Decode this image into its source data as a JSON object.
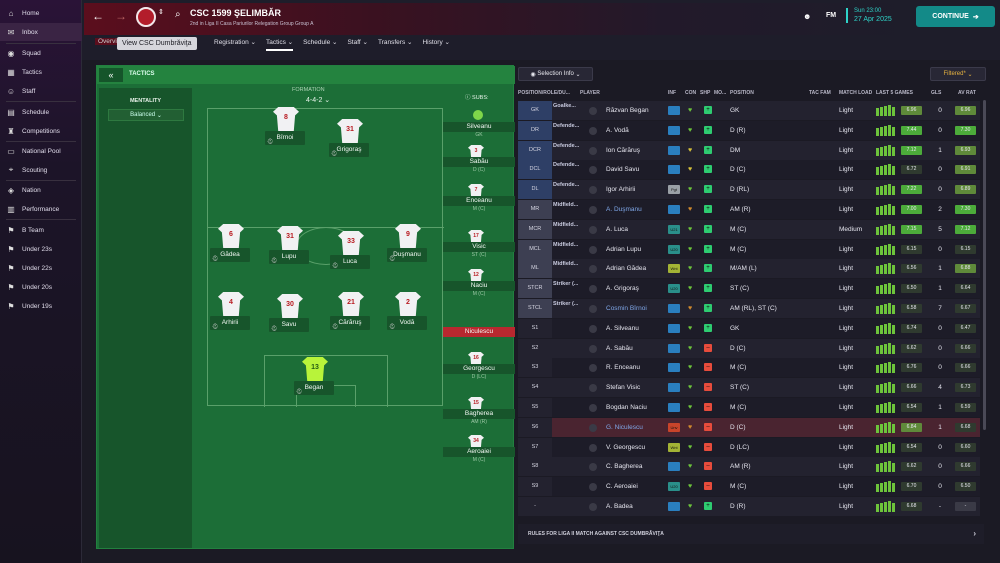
{
  "sidebar": {
    "items": [
      {
        "label": "Home",
        "icon": "home-icon"
      },
      {
        "label": "Inbox",
        "icon": "inbox-icon"
      },
      {
        "label": "Squad",
        "icon": "squad-icon"
      },
      {
        "label": "Tactics",
        "icon": "tactics-icon"
      },
      {
        "label": "Staff",
        "icon": "staff-icon"
      },
      {
        "label": "Schedule",
        "icon": "schedule-icon"
      },
      {
        "label": "Competitions",
        "icon": "trophy-icon"
      },
      {
        "label": "National Pool",
        "icon": "national-pool-icon"
      },
      {
        "label": "Scouting",
        "icon": "scouting-icon"
      },
      {
        "label": "Nation",
        "icon": "nation-icon"
      },
      {
        "label": "Performance",
        "icon": "performance-icon"
      },
      {
        "label": "B Team",
        "icon": "team-icon"
      },
      {
        "label": "Under 23s",
        "icon": "team-icon"
      },
      {
        "label": "Under 22s",
        "icon": "team-icon"
      },
      {
        "label": "Under 20s",
        "icon": "team-icon"
      },
      {
        "label": "Under 19s",
        "icon": "team-icon"
      }
    ]
  },
  "header": {
    "club_name": "CSC 1599 ŞELIMBĂR",
    "club_sub": "2nd in Liga II Casa Pariurilor Relegation Group Group A",
    "tooltip": "View CSC Dumbrăviţa",
    "overview_tab": "Overvi",
    "tabs": [
      "Registration",
      "Tactics",
      "Schedule",
      "Staff",
      "Transfers",
      "History"
    ],
    "active_tab": "Tactics",
    "fm_label": "FM",
    "date_line1": "Sun 23:00",
    "date_line2": "27 Apr 2025",
    "continue_label": "CONTINUE"
  },
  "tactics": {
    "panel_label": "TACTICS",
    "mentality_title": "MENTALITY",
    "mentality_value": "Balanced",
    "formation_label": "FORMATION",
    "formation_value": "4-4-2",
    "subs_label": "SUBS:",
    "pitch_players": [
      {
        "name": "Bîrnoi",
        "number": "8"
      },
      {
        "name": "Grigoraş",
        "number": "31"
      },
      {
        "name": "Gădea",
        "number": "6"
      },
      {
        "name": "Lupu",
        "number": "31"
      },
      {
        "name": "Luca",
        "number": "33"
      },
      {
        "name": "Duşmanu",
        "number": "9"
      },
      {
        "name": "Arhirii",
        "number": "4"
      },
      {
        "name": "Savu",
        "number": "30"
      },
      {
        "name": "Cărăruş",
        "number": "21"
      },
      {
        "name": "Vodă",
        "number": "2"
      },
      {
        "name": "Began",
        "number": "13"
      }
    ],
    "subs": [
      {
        "name": "Silveanu",
        "pos": "GK",
        "number": ""
      },
      {
        "name": "Sabău",
        "pos": "D (C)",
        "number": "3"
      },
      {
        "name": "Enceanu",
        "pos": "M (C)",
        "number": "7"
      },
      {
        "name": "Visic",
        "pos": "ST (C)",
        "number": "17"
      },
      {
        "name": "Naciu",
        "pos": "M (C)",
        "number": "12"
      },
      {
        "name": "Niculescu",
        "pos": "",
        "number": ""
      },
      {
        "name": "Georgescu",
        "pos": "D (LC)",
        "number": "16"
      },
      {
        "name": "Bagherea",
        "pos": "AM (R)",
        "number": "15"
      },
      {
        "name": "Aeroaiei",
        "pos": "M (C)",
        "number": "34"
      }
    ]
  },
  "squad": {
    "selection_info_label": "Selection Info",
    "filtered_label": "Filtered*",
    "columns": [
      "POSITION/ROLE/DU...",
      "PLAYER",
      "INF",
      "CON",
      "SHP",
      "MO...",
      "POSITION",
      "TAC FAM",
      "MATCH LOAD",
      "LAST 5 GAMES",
      "GLS",
      "AV RAT"
    ],
    "rows": [
      {
        "pos": "GK",
        "role": "Goalke...",
        "player": "Răzvan Began",
        "position": "GK",
        "load": "Light",
        "rating": "6.96",
        "gls": "0",
        "avr": "6.96",
        "inf": "",
        "con_color": "#6dc43b",
        "shp_color": "#2ecc71"
      },
      {
        "pos": "DR",
        "role": "Defende...",
        "player": "A. Vodă",
        "position": "D (R)",
        "load": "Light",
        "rating": "7.44",
        "gls": "0",
        "avr": "7.30",
        "inf": "",
        "con_color": "#6dc43b",
        "shp_color": "#2ecc71"
      },
      {
        "pos": "DCR",
        "role": "Defende...",
        "player": "Ion Cărăruş",
        "position": "DM",
        "load": "Light",
        "rating": "7.12",
        "gls": "1",
        "avr": "6.93",
        "inf": "",
        "con_color": "#d6c13a",
        "shp_color": "#2ecc71"
      },
      {
        "pos": "DCL",
        "role": "Defende...",
        "player": "David Savu",
        "position": "D (C)",
        "load": "Light",
        "rating": "6.72",
        "gls": "0",
        "avr": "6.91",
        "inf": "",
        "con_color": "#d6c13a",
        "shp_color": "#2ecc71"
      },
      {
        "pos": "DL",
        "role": "Defende...",
        "player": "Igor Arhirii",
        "position": "D (RL)",
        "load": "Light",
        "rating": "7.22",
        "gls": "0",
        "avr": "6.89",
        "inf": "Pgt",
        "con_color": "#6dc43b",
        "shp_color": "#2ecc71"
      },
      {
        "pos": "MR",
        "role": "Midfield...",
        "player": "A. Duşmanu",
        "position": "AM (R)",
        "load": "Light",
        "rating": "7.00",
        "gls": "2",
        "avr": "7.30",
        "inf": "",
        "con_color": "#d08a2d",
        "shp_color": "#2ecc71"
      },
      {
        "pos": "MCR",
        "role": "Midfield...",
        "player": "A. Luca",
        "position": "M (C)",
        "load": "Medium",
        "rating": "7.15",
        "gls": "5",
        "avr": "7.12",
        "inf": "U21",
        "con_color": "#6dc43b",
        "shp_color": "#2ecc71"
      },
      {
        "pos": "MCL",
        "role": "Midfield...",
        "player": "Adrian Lupu",
        "position": "M (C)",
        "load": "Light",
        "rating": "6.15",
        "gls": "0",
        "avr": "6.15",
        "inf": "U20",
        "con_color": "#6dc43b",
        "shp_color": "#2ecc71"
      },
      {
        "pos": "ML",
        "role": "Midfield...",
        "player": "Adrian Gădea",
        "position": "M/AM (L)",
        "load": "Light",
        "rating": "6.56",
        "gls": "1",
        "avr": "6.88",
        "inf": "Wnt",
        "con_color": "#6dc43b",
        "shp_color": "#2ecc71"
      },
      {
        "pos": "STCR",
        "role": "Striker (...",
        "player": "A. Grigoraş",
        "position": "ST (C)",
        "load": "Light",
        "rating": "6.50",
        "gls": "1",
        "avr": "6.64",
        "inf": "U20",
        "con_color": "#6dc43b",
        "shp_color": "#2ecc71"
      },
      {
        "pos": "STCL",
        "role": "Striker (...",
        "player": "Cosmin Bîrnoi",
        "position": "AM (RL), ST (C)",
        "load": "Light",
        "rating": "6.58",
        "gls": "7",
        "avr": "6.67",
        "inf": "",
        "con_color": "#d08a2d",
        "shp_color": "#2ecc71"
      },
      {
        "pos": "S1",
        "role": "",
        "player": "A. Silveanu",
        "position": "GK",
        "load": "Light",
        "rating": "6.74",
        "gls": "0",
        "avr": "6.47",
        "inf": "",
        "con_color": "#6dc43b",
        "shp_color": "#2ecc71"
      },
      {
        "pos": "S2",
        "role": "",
        "player": "A. Sabău",
        "position": "D (C)",
        "load": "Light",
        "rating": "6.62",
        "gls": "0",
        "avr": "6.66",
        "inf": "",
        "con_color": "#6dc43b",
        "shp_color": "#e74c3c"
      },
      {
        "pos": "S3",
        "role": "",
        "player": "R. Enceanu",
        "position": "M (C)",
        "load": "Light",
        "rating": "6.76",
        "gls": "0",
        "avr": "6.66",
        "inf": "",
        "con_color": "#6dc43b",
        "shp_color": "#e74c3c"
      },
      {
        "pos": "S4",
        "role": "",
        "player": "Stefan Visic",
        "position": "ST (C)",
        "load": "Light",
        "rating": "6.66",
        "gls": "4",
        "avr": "6.73",
        "inf": "",
        "con_color": "#6dc43b",
        "shp_color": "#e74c3c"
      },
      {
        "pos": "S5",
        "role": "",
        "player": "Bogdan Naciu",
        "position": "M (C)",
        "load": "Light",
        "rating": "6.54",
        "gls": "1",
        "avr": "6.59",
        "inf": "",
        "con_color": "#6dc43b",
        "shp_color": "#e74c3c"
      },
      {
        "pos": "S6",
        "role": "",
        "player": "G. Niculescu",
        "position": "D (C)",
        "load": "Light",
        "rating": "6.84",
        "gls": "1",
        "avr": "6.68",
        "inf": "Unv",
        "con_color": "#d08a2d",
        "shp_color": "#e74c3c"
      },
      {
        "pos": "S7",
        "role": "",
        "player": "V. Georgescu",
        "position": "D (LC)",
        "load": "Light",
        "rating": "6.54",
        "gls": "0",
        "avr": "6.60",
        "inf": "Wnt",
        "con_color": "#6dc43b",
        "shp_color": "#e74c3c"
      },
      {
        "pos": "S8",
        "role": "",
        "player": "C. Bagherea",
        "position": "AM (R)",
        "load": "Light",
        "rating": "6.62",
        "gls": "0",
        "avr": "6.66",
        "inf": "",
        "con_color": "#6dc43b",
        "shp_color": "#e74c3c"
      },
      {
        "pos": "S9",
        "role": "",
        "player": "C. Aeroaiei",
        "position": "M (C)",
        "load": "Light",
        "rating": "6.70",
        "gls": "0",
        "avr": "6.50",
        "inf": "U20",
        "con_color": "#6dc43b",
        "shp_color": "#e74c3c"
      },
      {
        "pos": "-",
        "role": "",
        "player": "A. Badea",
        "position": "D (R)",
        "load": "Light",
        "rating": "6.68",
        "gls": "-",
        "avr": "-",
        "inf": "",
        "con_color": "#6dc43b",
        "shp_color": "#2ecc71"
      }
    ],
    "footer_label": "RULES FOR LIGA II MATCH AGAINST CSC DUMBRĂVIŢA"
  }
}
